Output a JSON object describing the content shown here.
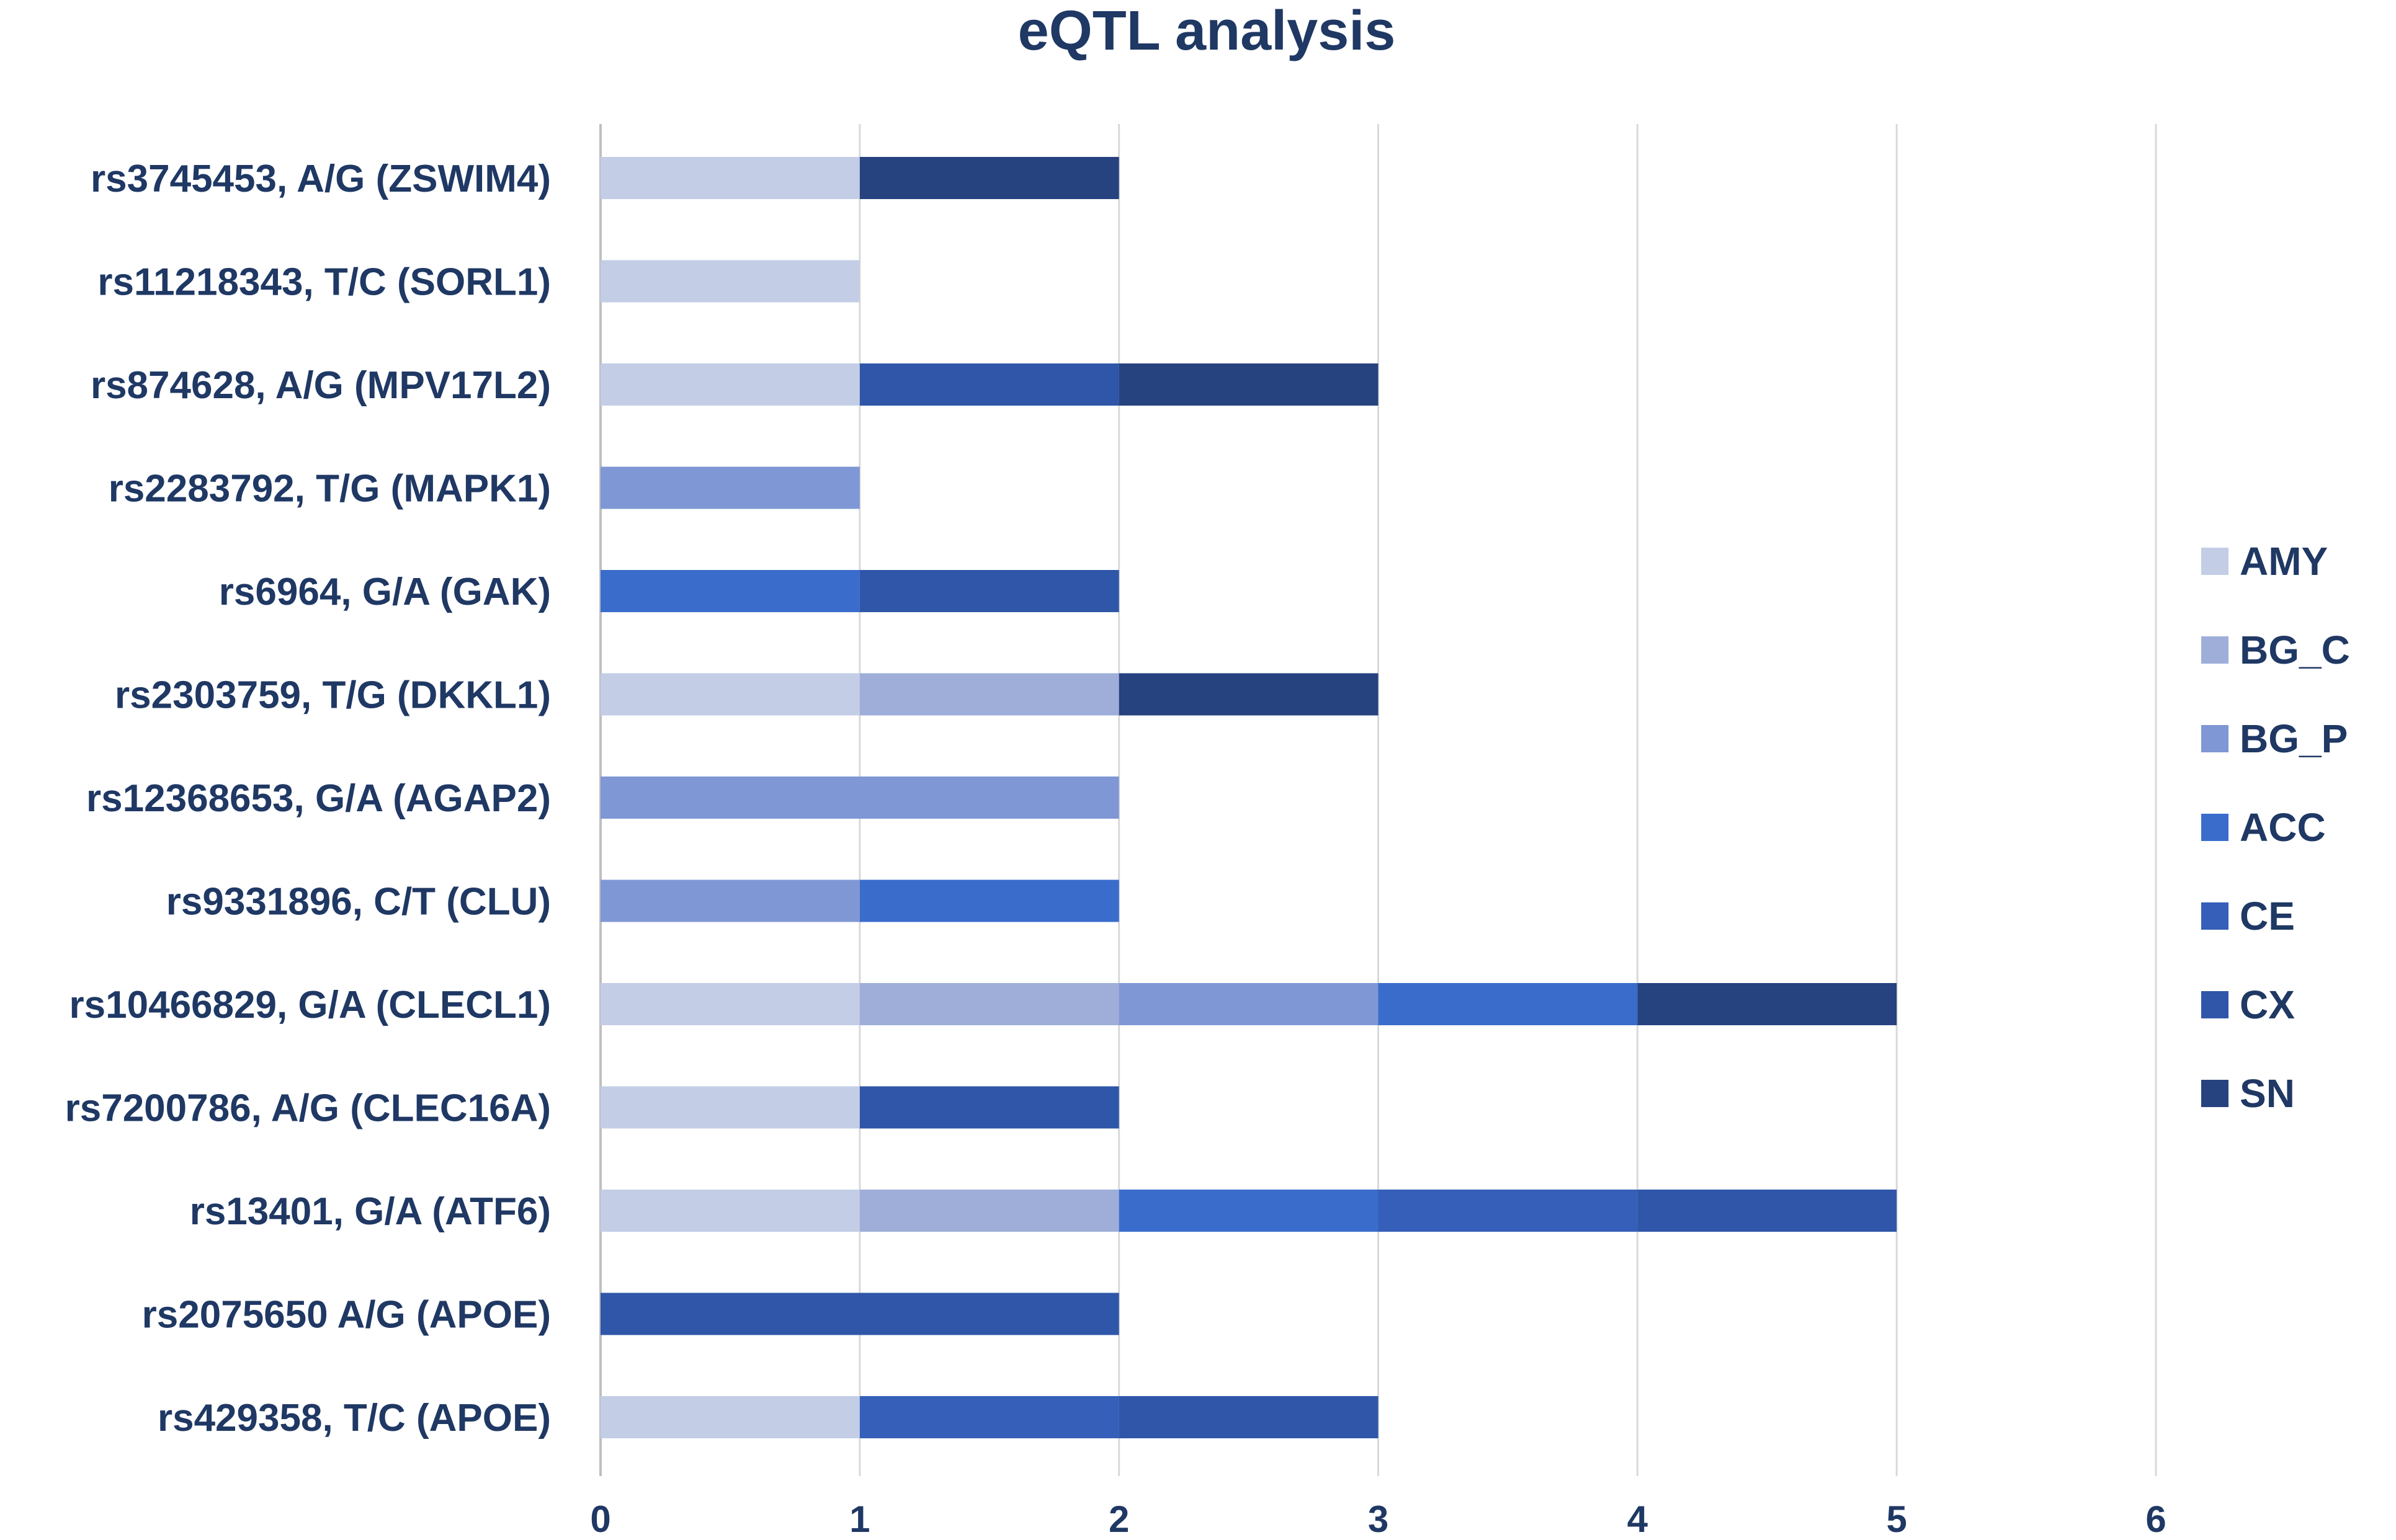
{
  "chart_data": {
    "type": "bar",
    "orientation": "horizontal",
    "stacked": true,
    "title": "eQTL analysis",
    "xlabel": "",
    "ylabel": "",
    "xlim": [
      0,
      6
    ],
    "x_ticks": [
      "0",
      "1",
      "2",
      "3",
      "4",
      "5",
      "6"
    ],
    "grid": "vertical",
    "legend_position": "right",
    "categories": [
      "rs3745453, A/G (ZSWIM4)",
      "rs11218343, T/C (SORL1)",
      "rs874628, A/G (MPV17L2)",
      "rs2283792, T/G (MAPK1)",
      "rs6964, G/A (GAK)",
      "rs2303759, T/G (DKKL1)",
      "rs12368653, G/A (AGAP2)",
      "rs9331896, C/T (CLU)",
      "rs10466829, G/A (CLECL1)",
      "rs7200786, A/G (CLEC16A)",
      "rs13401, G/A (ATF6)",
      "rs2075650 A/G (APOE)",
      "rs429358, T/C (APOE)"
    ],
    "series": [
      {
        "name": "AMY",
        "color": "#c3cde6",
        "values": [
          1,
          1,
          1,
          0,
          0,
          1,
          0,
          0,
          1,
          1,
          1,
          0,
          1
        ]
      },
      {
        "name": "BG_C",
        "color": "#9eaed9",
        "values": [
          0,
          0,
          0,
          0,
          0,
          1,
          0,
          0,
          1,
          0,
          1,
          0,
          0
        ]
      },
      {
        "name": "BG_P",
        "color": "#7f97d4",
        "values": [
          0,
          0,
          0,
          1,
          0,
          0,
          2,
          1,
          1,
          0,
          0,
          0,
          0
        ]
      },
      {
        "name": "ACC",
        "color": "#3a6ccc",
        "values": [
          0,
          0,
          0,
          0,
          1,
          0,
          0,
          1,
          1,
          0,
          1,
          0,
          0
        ]
      },
      {
        "name": "CE",
        "color": "#355fb8",
        "values": [
          0,
          0,
          0,
          0,
          0,
          0,
          0,
          0,
          0,
          0,
          1,
          0,
          1
        ]
      },
      {
        "name": "CX",
        "color": "#2f56a8",
        "values": [
          0,
          0,
          1,
          0,
          1,
          0,
          0,
          0,
          0,
          1,
          1,
          2,
          1
        ]
      },
      {
        "name": "SN",
        "color": "#26427f",
        "values": [
          1,
          0,
          1,
          0,
          0,
          1,
          0,
          0,
          1,
          0,
          0,
          0,
          0
        ]
      }
    ]
  }
}
